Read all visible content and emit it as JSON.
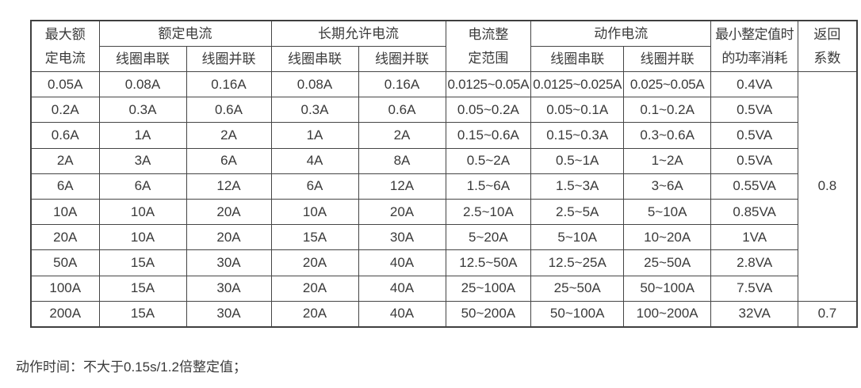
{
  "table": {
    "header": {
      "max_rated_lines": [
        "最大额",
        "定电流"
      ],
      "group_rated": "额定电流",
      "group_longterm": "长期允许电流",
      "setting_range_lines": [
        "电流整",
        "定范围"
      ],
      "group_action": "动作电流",
      "power_lines": [
        "最小整定值时",
        "的功率消耗"
      ],
      "return_lines": [
        "返回",
        "系数"
      ],
      "sub_series": "线圈串联",
      "sub_parallel": "线圈并联"
    },
    "rows": [
      [
        "0.05A",
        "0.08A",
        "0.16A",
        "0.08A",
        "0.16A",
        "0.0125~0.05A",
        "0.0125~0.025A",
        "0.025~0.05A",
        "0.4VA"
      ],
      [
        "0.2A",
        "0.3A",
        "0.6A",
        "0.3A",
        "0.6A",
        "0.05~0.2A",
        "0.05~0.1A",
        "0.1~0.2A",
        "0.5VA"
      ],
      [
        "0.6A",
        "1A",
        "2A",
        "1A",
        "2A",
        "0.15~0.6A",
        "0.15~0.3A",
        "0.3~0.6A",
        "0.5VA"
      ],
      [
        "2A",
        "3A",
        "6A",
        "4A",
        "8A",
        "0.5~2A",
        "0.5~1A",
        "1~2A",
        "0.5VA"
      ],
      [
        "6A",
        "6A",
        "12A",
        "6A",
        "12A",
        "1.5~6A",
        "1.5~3A",
        "3~6A",
        "0.55VA"
      ],
      [
        "10A",
        "10A",
        "20A",
        "10A",
        "20A",
        "2.5~10A",
        "2.5~5A",
        "5~10A",
        "0.85VA"
      ],
      [
        "20A",
        "10A",
        "20A",
        "15A",
        "30A",
        "5~20A",
        "5~10A",
        "10~20A",
        "1VA"
      ],
      [
        "50A",
        "15A",
        "30A",
        "20A",
        "40A",
        "12.5~50A",
        "12.5~25A",
        "25~50A",
        "2.8VA"
      ],
      [
        "100A",
        "15A",
        "30A",
        "20A",
        "40A",
        "25~100A",
        "25~50A",
        "50~100A",
        "7.5VA"
      ],
      [
        "200A",
        "15A",
        "30A",
        "20A",
        "40A",
        "50~200A",
        "50~100A",
        "100~200A",
        "32VA"
      ]
    ],
    "return_coefficient": {
      "rows_1_to_9": "0.8",
      "row_10": "0.7"
    }
  },
  "footnote": "动作时间：不大于0.15s/1.2倍整定值；"
}
